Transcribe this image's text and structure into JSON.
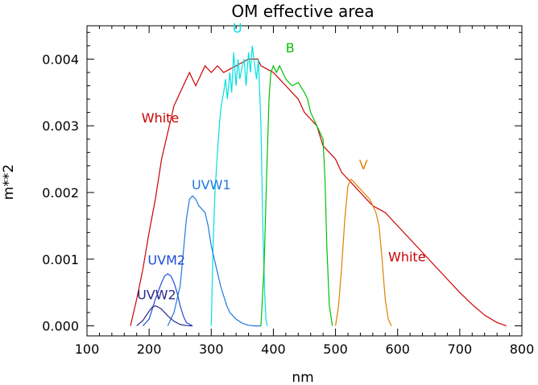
{
  "chart_data": {
    "type": "line",
    "title": "OM effective area",
    "xlabel": "nm",
    "ylabel": "m**2",
    "xlim": [
      100,
      800
    ],
    "ylim": [
      -0.00015,
      0.0045
    ],
    "grid": false,
    "xticks": [
      100,
      200,
      300,
      400,
      500,
      600,
      700,
      800
    ],
    "xtick_labels": [
      "100",
      "200",
      "300",
      "400",
      "500",
      "600",
      "700",
      "800"
    ],
    "yticks": [
      0,
      0.001,
      0.002,
      0.003,
      0.004
    ],
    "ytick_labels": [
      "0.000",
      "0.001",
      "0.002",
      "0.003",
      "0.004"
    ],
    "series": [
      {
        "name": "White",
        "color": "#cc0000",
        "x": [
          170,
          180,
          190,
          200,
          210,
          220,
          230,
          240,
          250,
          260,
          265,
          270,
          275,
          280,
          290,
          300,
          310,
          320,
          330,
          340,
          350,
          360,
          370,
          375,
          380,
          390,
          400,
          410,
          420,
          430,
          440,
          450,
          460,
          470,
          480,
          490,
          500,
          510,
          520,
          530,
          540,
          550,
          560,
          570,
          580,
          590,
          600,
          620,
          640,
          660,
          680,
          700,
          720,
          740,
          760,
          775
        ],
        "y": [
          0.0,
          0.0004,
          0.00085,
          0.0014,
          0.0019,
          0.0025,
          0.0029,
          0.0033,
          0.0035,
          0.0037,
          0.0038,
          0.0037,
          0.0036,
          0.0037,
          0.0039,
          0.0038,
          0.0039,
          0.0038,
          0.00385,
          0.0039,
          0.00395,
          0.004,
          0.004,
          0.004,
          0.0039,
          0.00385,
          0.0038,
          0.0037,
          0.0036,
          0.0035,
          0.0034,
          0.0032,
          0.0031,
          0.003,
          0.0027,
          0.0026,
          0.0025,
          0.0023,
          0.0022,
          0.0021,
          0.002,
          0.0019,
          0.0018,
          0.00175,
          0.0017,
          0.0016,
          0.0015,
          0.0013,
          0.0011,
          0.0009,
          0.0007,
          0.0005,
          0.00032,
          0.00016,
          5e-05,
          0.0
        ]
      },
      {
        "name": "U",
        "color": "#00e0e0",
        "x": [
          300,
          303,
          306,
          310,
          313,
          316,
          320,
          323,
          326,
          330,
          333,
          336,
          340,
          343,
          346,
          350,
          353,
          356,
          360,
          363,
          366,
          370,
          373,
          376,
          380,
          383,
          386,
          388,
          390
        ],
        "y": [
          0.0,
          0.0012,
          0.002,
          0.0026,
          0.003,
          0.0033,
          0.0035,
          0.0037,
          0.0034,
          0.0038,
          0.0035,
          0.0041,
          0.0036,
          0.004,
          0.0037,
          0.0039,
          0.004,
          0.0036,
          0.0041,
          0.0038,
          0.0042,
          0.0039,
          0.0037,
          0.004,
          0.003,
          0.0015,
          0.0005,
          0.0001,
          0.0
        ]
      },
      {
        "name": "B",
        "color": "#00c000",
        "x": [
          380,
          385,
          390,
          393,
          396,
          400,
          405,
          410,
          420,
          430,
          440,
          450,
          455,
          460,
          465,
          470,
          475,
          480,
          483,
          486,
          490,
          495
        ],
        "y": [
          0.0,
          0.0009,
          0.0025,
          0.0034,
          0.0038,
          0.0039,
          0.0038,
          0.0039,
          0.0037,
          0.0036,
          0.00365,
          0.0035,
          0.0034,
          0.0032,
          0.0031,
          0.003,
          0.0029,
          0.0028,
          0.0022,
          0.0012,
          0.0003,
          0.0
        ]
      },
      {
        "name": "V",
        "color": "#e08000",
        "x": [
          500,
          505,
          510,
          515,
          520,
          525,
          530,
          535,
          540,
          545,
          550,
          555,
          560,
          565,
          570,
          575,
          580,
          585,
          590
        ],
        "y": [
          0.0,
          0.0003,
          0.0009,
          0.0016,
          0.0021,
          0.0022,
          0.00215,
          0.0021,
          0.00205,
          0.002,
          0.00195,
          0.0019,
          0.0018,
          0.0017,
          0.0015,
          0.001,
          0.0004,
          0.0001,
          0.0
        ]
      },
      {
        "name": "UVW1",
        "color": "#1e78e0",
        "x": [
          230,
          240,
          250,
          255,
          260,
          265,
          270,
          275,
          280,
          285,
          290,
          295,
          300,
          305,
          310,
          315,
          320,
          325,
          330,
          340,
          350,
          360,
          370,
          380
        ],
        "y": [
          0.0,
          0.0002,
          0.0006,
          0.0011,
          0.0016,
          0.0019,
          0.00195,
          0.0019,
          0.0018,
          0.00175,
          0.0017,
          0.0015,
          0.0012,
          0.001,
          0.0008,
          0.0006,
          0.00045,
          0.0003,
          0.0002,
          0.0001,
          4e-05,
          1e-05,
          0.0,
          0.0
        ]
      },
      {
        "name": "UVM2",
        "color": "#1f4bd6",
        "x": [
          190,
          200,
          210,
          220,
          225,
          230,
          235,
          240,
          245,
          250,
          255,
          260,
          270
        ],
        "y": [
          0.0,
          0.0001,
          0.0004,
          0.00065,
          0.00075,
          0.00078,
          0.00075,
          0.00065,
          0.0005,
          0.0003,
          0.00015,
          5e-05,
          0.0
        ]
      },
      {
        "name": "UVW2",
        "color": "#2a2a8a",
        "x": [
          180,
          190,
          200,
          205,
          210,
          215,
          220,
          230,
          240,
          250,
          260,
          270
        ],
        "y": [
          0.0,
          8e-05,
          0.00022,
          0.00028,
          0.0003,
          0.00028,
          0.00025,
          0.00015,
          7e-05,
          2e-05,
          5e-06,
          0.0
        ]
      }
    ],
    "annotations": [
      {
        "text": "White",
        "color": "#cc0000",
        "x": 218,
        "y": 0.00305,
        "anchor": "middle"
      },
      {
        "text": "White",
        "color": "#cc0000",
        "x": 615,
        "y": 0.00097,
        "anchor": "middle"
      },
      {
        "text": "U",
        "color": "#00e0e0",
        "x": 342,
        "y": 0.0044,
        "anchor": "middle"
      },
      {
        "text": "B",
        "color": "#00c000",
        "x": 427,
        "y": 0.0041,
        "anchor": "middle"
      },
      {
        "text": "V",
        "color": "#e08000",
        "x": 545,
        "y": 0.00235,
        "anchor": "middle"
      },
      {
        "text": "UVW1",
        "color": "#1e78e0",
        "x": 300,
        "y": 0.00205,
        "anchor": "middle"
      },
      {
        "text": "UVM2",
        "color": "#1f4bd6",
        "x": 228,
        "y": 0.00092,
        "anchor": "middle"
      },
      {
        "text": "UVW2",
        "color": "#2a2a8a",
        "x": 212,
        "y": 0.0004,
        "anchor": "middle"
      }
    ]
  }
}
